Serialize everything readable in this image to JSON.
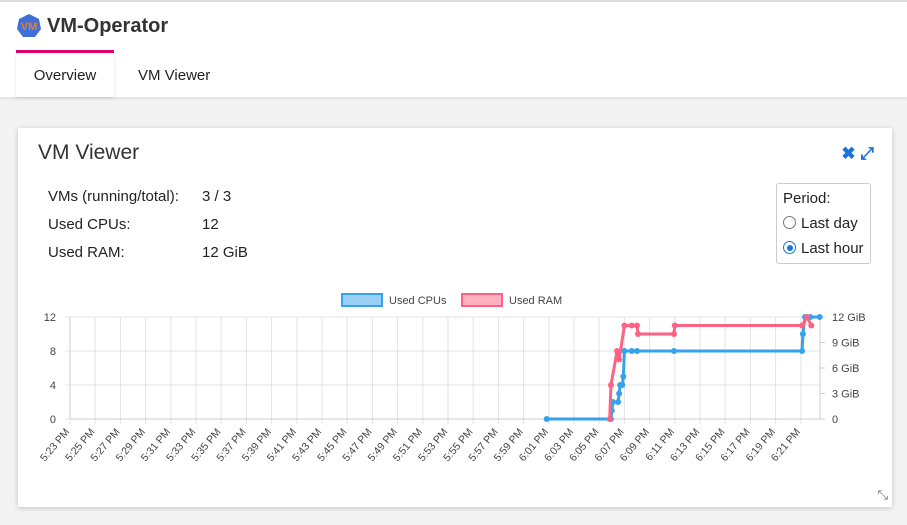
{
  "app": {
    "title": "VM-Operator",
    "logo_text": "VM"
  },
  "tabs": [
    {
      "label": "Overview",
      "active": true
    },
    {
      "label": "VM Viewer",
      "active": false
    }
  ],
  "accent": "#d6006f",
  "card": {
    "title": "VM Viewer",
    "close_icon": "close-icon",
    "expand_icon": "expand-icon",
    "stats": [
      {
        "label": "VMs (running/total):",
        "value": "3 / 3"
      },
      {
        "label": "Used CPUs:",
        "value": "12"
      },
      {
        "label": "Used RAM:",
        "value": "12 GiB"
      }
    ],
    "period": {
      "label": "Period:",
      "options": [
        {
          "label": "Last day",
          "selected": false
        },
        {
          "label": "Last hour",
          "selected": true
        }
      ]
    }
  },
  "chart_data": {
    "type": "line",
    "legend": [
      "Used CPUs",
      "Used RAM"
    ],
    "legend_position": "top",
    "x_ticks": [
      "5:23 PM",
      "5:25 PM",
      "5:27 PM",
      "5:29 PM",
      "5:31 PM",
      "5:33 PM",
      "5:35 PM",
      "5:37 PM",
      "5:39 PM",
      "5:41 PM",
      "5:43 PM",
      "5:45 PM",
      "5:47 PM",
      "5:49 PM",
      "5:51 PM",
      "5:53 PM",
      "5:55 PM",
      "5:57 PM",
      "5:59 PM",
      "6:01 PM",
      "6:03 PM",
      "6:05 PM",
      "6:07 PM",
      "6:09 PM",
      "6:11 PM",
      "6:13 PM",
      "6:15 PM",
      "6:17 PM",
      "6:19 PM",
      "6:21 PM"
    ],
    "xlim": [
      "5:23 PM",
      "6:22:30 PM"
    ],
    "y_left": {
      "ticks": [
        "0",
        "4",
        "8",
        "12"
      ],
      "ylim": [
        0,
        12
      ]
    },
    "y_right": {
      "ticks": [
        "0",
        "3 GiB",
        "6 GiB",
        "9 GiB",
        "12 GiB"
      ],
      "ylim": [
        0,
        12
      ]
    },
    "grid": true,
    "series": [
      {
        "name": "Used CPUs",
        "axis": "left",
        "color": "#36a2eb",
        "points": [
          [
            "6:00:50 PM",
            0
          ],
          [
            "6:05:56 PM",
            0
          ],
          [
            "6:06:00 PM",
            1
          ],
          [
            "6:06:05 PM",
            2
          ],
          [
            "6:06:30 PM",
            2
          ],
          [
            "6:06:35 PM",
            3
          ],
          [
            "6:06:40 PM",
            4
          ],
          [
            "6:06:50 PM",
            4
          ],
          [
            "6:06:55 PM",
            5
          ],
          [
            "6:07:00 PM",
            8
          ],
          [
            "6:07:35 PM",
            8
          ],
          [
            "6:08:00 PM",
            8
          ],
          [
            "6:10:56 PM",
            8
          ],
          [
            "6:21:06 PM",
            8
          ],
          [
            "6:21:10 PM",
            10
          ],
          [
            "6:21:20 PM",
            12
          ],
          [
            "6:21:45 PM",
            12
          ],
          [
            "6:22:30 PM",
            12
          ]
        ]
      },
      {
        "name": "Used RAM",
        "axis": "right",
        "color": "#ff6384",
        "points": [
          [
            "6:05:50 PM",
            0
          ],
          [
            "6:05:56 PM",
            4
          ],
          [
            "6:06:25 PM",
            8
          ],
          [
            "6:06:35 PM",
            7
          ],
          [
            "6:07:00 PM",
            11
          ],
          [
            "6:07:35 PM",
            11
          ],
          [
            "6:08:00 PM",
            11
          ],
          [
            "6:08:05 PM",
            10
          ],
          [
            "6:10:56 PM",
            10
          ],
          [
            "6:11:00 PM",
            11
          ],
          [
            "6:21:06 PM",
            11
          ],
          [
            "6:21:30 PM",
            12
          ],
          [
            "6:21:50 PM",
            11
          ]
        ]
      }
    ]
  }
}
